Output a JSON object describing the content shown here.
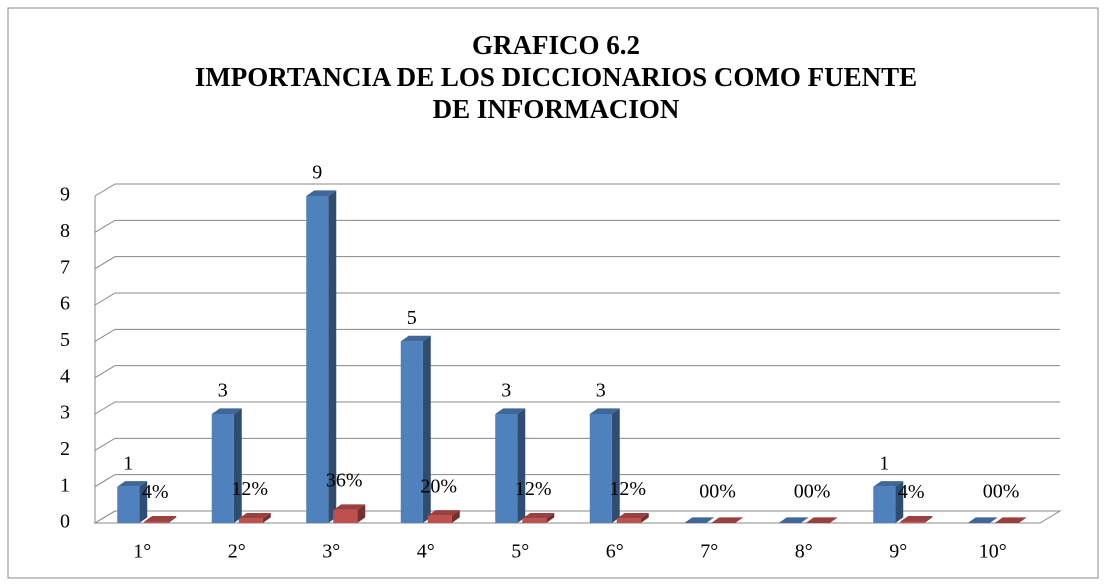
{
  "chart_data": {
    "type": "bar3d",
    "title": [
      "GRAFICO 6.2",
      "IMPORTANCIA DE LOS DICCIONARIOS COMO FUENTE",
      "DE INFORMACION"
    ],
    "categories": [
      "1°",
      "2°",
      "3°",
      "4°",
      "5°",
      "6°",
      "7°",
      "8°",
      "9°",
      "10°"
    ],
    "series": [
      {
        "color": "#4f81bd",
        "values": [
          1,
          3,
          9,
          5,
          3,
          3,
          0,
          0,
          1,
          0
        ]
      },
      {
        "color": "#c0504d",
        "values": [
          0.04,
          0.12,
          0.36,
          0.2,
          0.12,
          0.12,
          0,
          0,
          0.04,
          0
        ],
        "value_labels": [
          "4%",
          "12%",
          "36%",
          "20%",
          "12%",
          "12%",
          "0%",
          "0%",
          "4%",
          "0%"
        ]
      }
    ],
    "ylim": [
      0,
      9
    ],
    "yticks": [
      0,
      1,
      2,
      3,
      4,
      5,
      6,
      7,
      8,
      9
    ],
    "grid": true
  }
}
